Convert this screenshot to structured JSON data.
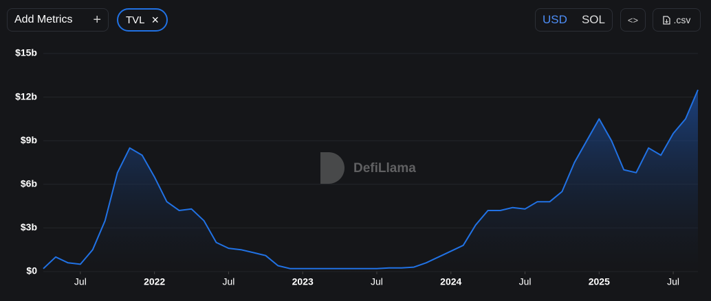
{
  "toolbar": {
    "add_metrics": "Add Metrics",
    "add_icon": "+",
    "metric": "TVL",
    "remove_icon": "×",
    "currencies": [
      "USD",
      "SOL"
    ],
    "embed_icon": "<>",
    "csv": ".csv"
  },
  "chart_data": {
    "type": "area",
    "watermark": "DefiLlama",
    "color": "#2172e5",
    "x": [
      "2021-04",
      "2021-05",
      "2021-06",
      "2021-07",
      "2021-08",
      "2021-09",
      "2021-10",
      "2021-11",
      "2021-12",
      "2022-01",
      "2022-02",
      "2022-03",
      "2022-04",
      "2022-05",
      "2022-06",
      "2022-07",
      "2022-08",
      "2022-09",
      "2022-10",
      "2022-11",
      "2022-12",
      "2023-01",
      "2023-02",
      "2023-03",
      "2023-04",
      "2023-05",
      "2023-06",
      "2023-07",
      "2023-08",
      "2023-09",
      "2023-10",
      "2023-11",
      "2023-12",
      "2024-01",
      "2024-02",
      "2024-03",
      "2024-04",
      "2024-05",
      "2024-06",
      "2024-07",
      "2024-08",
      "2024-09",
      "2024-10",
      "2024-11",
      "2024-12",
      "2025-01",
      "2025-02",
      "2025-03",
      "2025-04",
      "2025-05",
      "2025-06",
      "2025-07",
      "2025-08",
      "2025-09"
    ],
    "series": [
      {
        "name": "TVL",
        "color": "#2172e5",
        "values": [
          0.2,
          1.0,
          0.6,
          0.5,
          1.5,
          3.5,
          6.8,
          8.5,
          8.0,
          6.5,
          4.8,
          4.2,
          4.3,
          3.5,
          2.0,
          1.6,
          1.5,
          1.3,
          1.1,
          0.4,
          0.2,
          0.2,
          0.2,
          0.2,
          0.2,
          0.2,
          0.2,
          0.2,
          0.25,
          0.25,
          0.3,
          0.6,
          1.0,
          1.4,
          1.8,
          3.2,
          4.2,
          4.2,
          4.4,
          4.3,
          4.8,
          4.8,
          5.5,
          7.5,
          9.0,
          10.5,
          9.0,
          7.0,
          6.8,
          8.5,
          8.0,
          9.5,
          10.5,
          12.5
        ]
      }
    ],
    "xlim": [
      "2021-04",
      "2025-09"
    ],
    "xticks": [
      {
        "value": "2021-07",
        "label": "Jul"
      },
      {
        "value": "2022-01",
        "label": "2022"
      },
      {
        "value": "2022-07",
        "label": "Jul"
      },
      {
        "value": "2023-01",
        "label": "2023"
      },
      {
        "value": "2023-07",
        "label": "Jul"
      },
      {
        "value": "2024-01",
        "label": "2024"
      },
      {
        "value": "2024-07",
        "label": "Jul"
      },
      {
        "value": "2025-01",
        "label": "2025"
      },
      {
        "value": "2025-07",
        "label": "Jul"
      }
    ],
    "ylim": [
      0,
      15
    ],
    "yticks": [
      {
        "value": 0,
        "label": "$0"
      },
      {
        "value": 3,
        "label": "$3b"
      },
      {
        "value": 6,
        "label": "$6b"
      },
      {
        "value": 9,
        "label": "$9b"
      },
      {
        "value": 12,
        "label": "$12b"
      },
      {
        "value": 15,
        "label": "$15b"
      }
    ],
    "grid": true
  }
}
